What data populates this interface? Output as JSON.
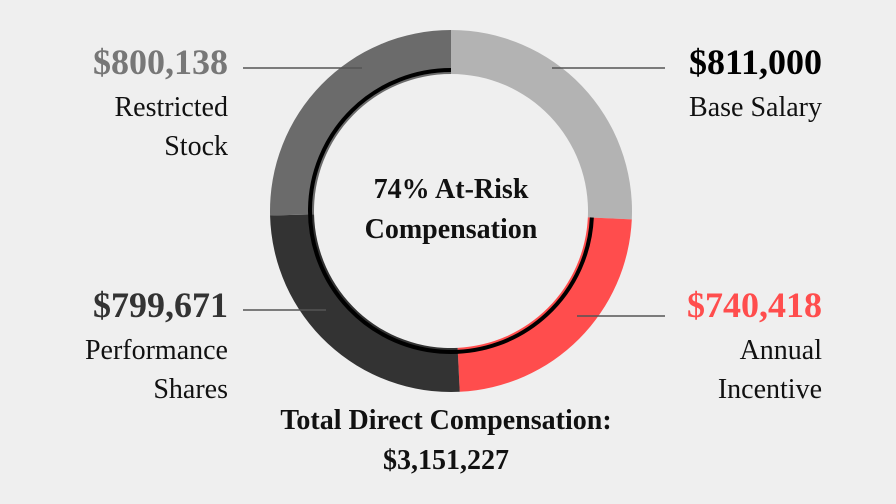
{
  "chart_data": {
    "type": "donut",
    "categories": [
      "Base Salary",
      "Annual Incentive",
      "Performance Shares",
      "Restricted Stock"
    ],
    "values": [
      811000,
      740418,
      799671,
      800138
    ],
    "value_labels": [
      "$811,000",
      "$740,418",
      "$799,671",
      "$800,138"
    ],
    "colors": [
      "#b3b3b3",
      "#ff4d4d",
      "#333333",
      "#6b6b6b"
    ],
    "label_colors": [
      "#000000",
      "#ff4d4d",
      "#333333",
      "#777777"
    ],
    "center_label": "74% At-Risk Compensation",
    "total_title": "Total Direct Compensation:",
    "total_label": "$3,151,227"
  }
}
